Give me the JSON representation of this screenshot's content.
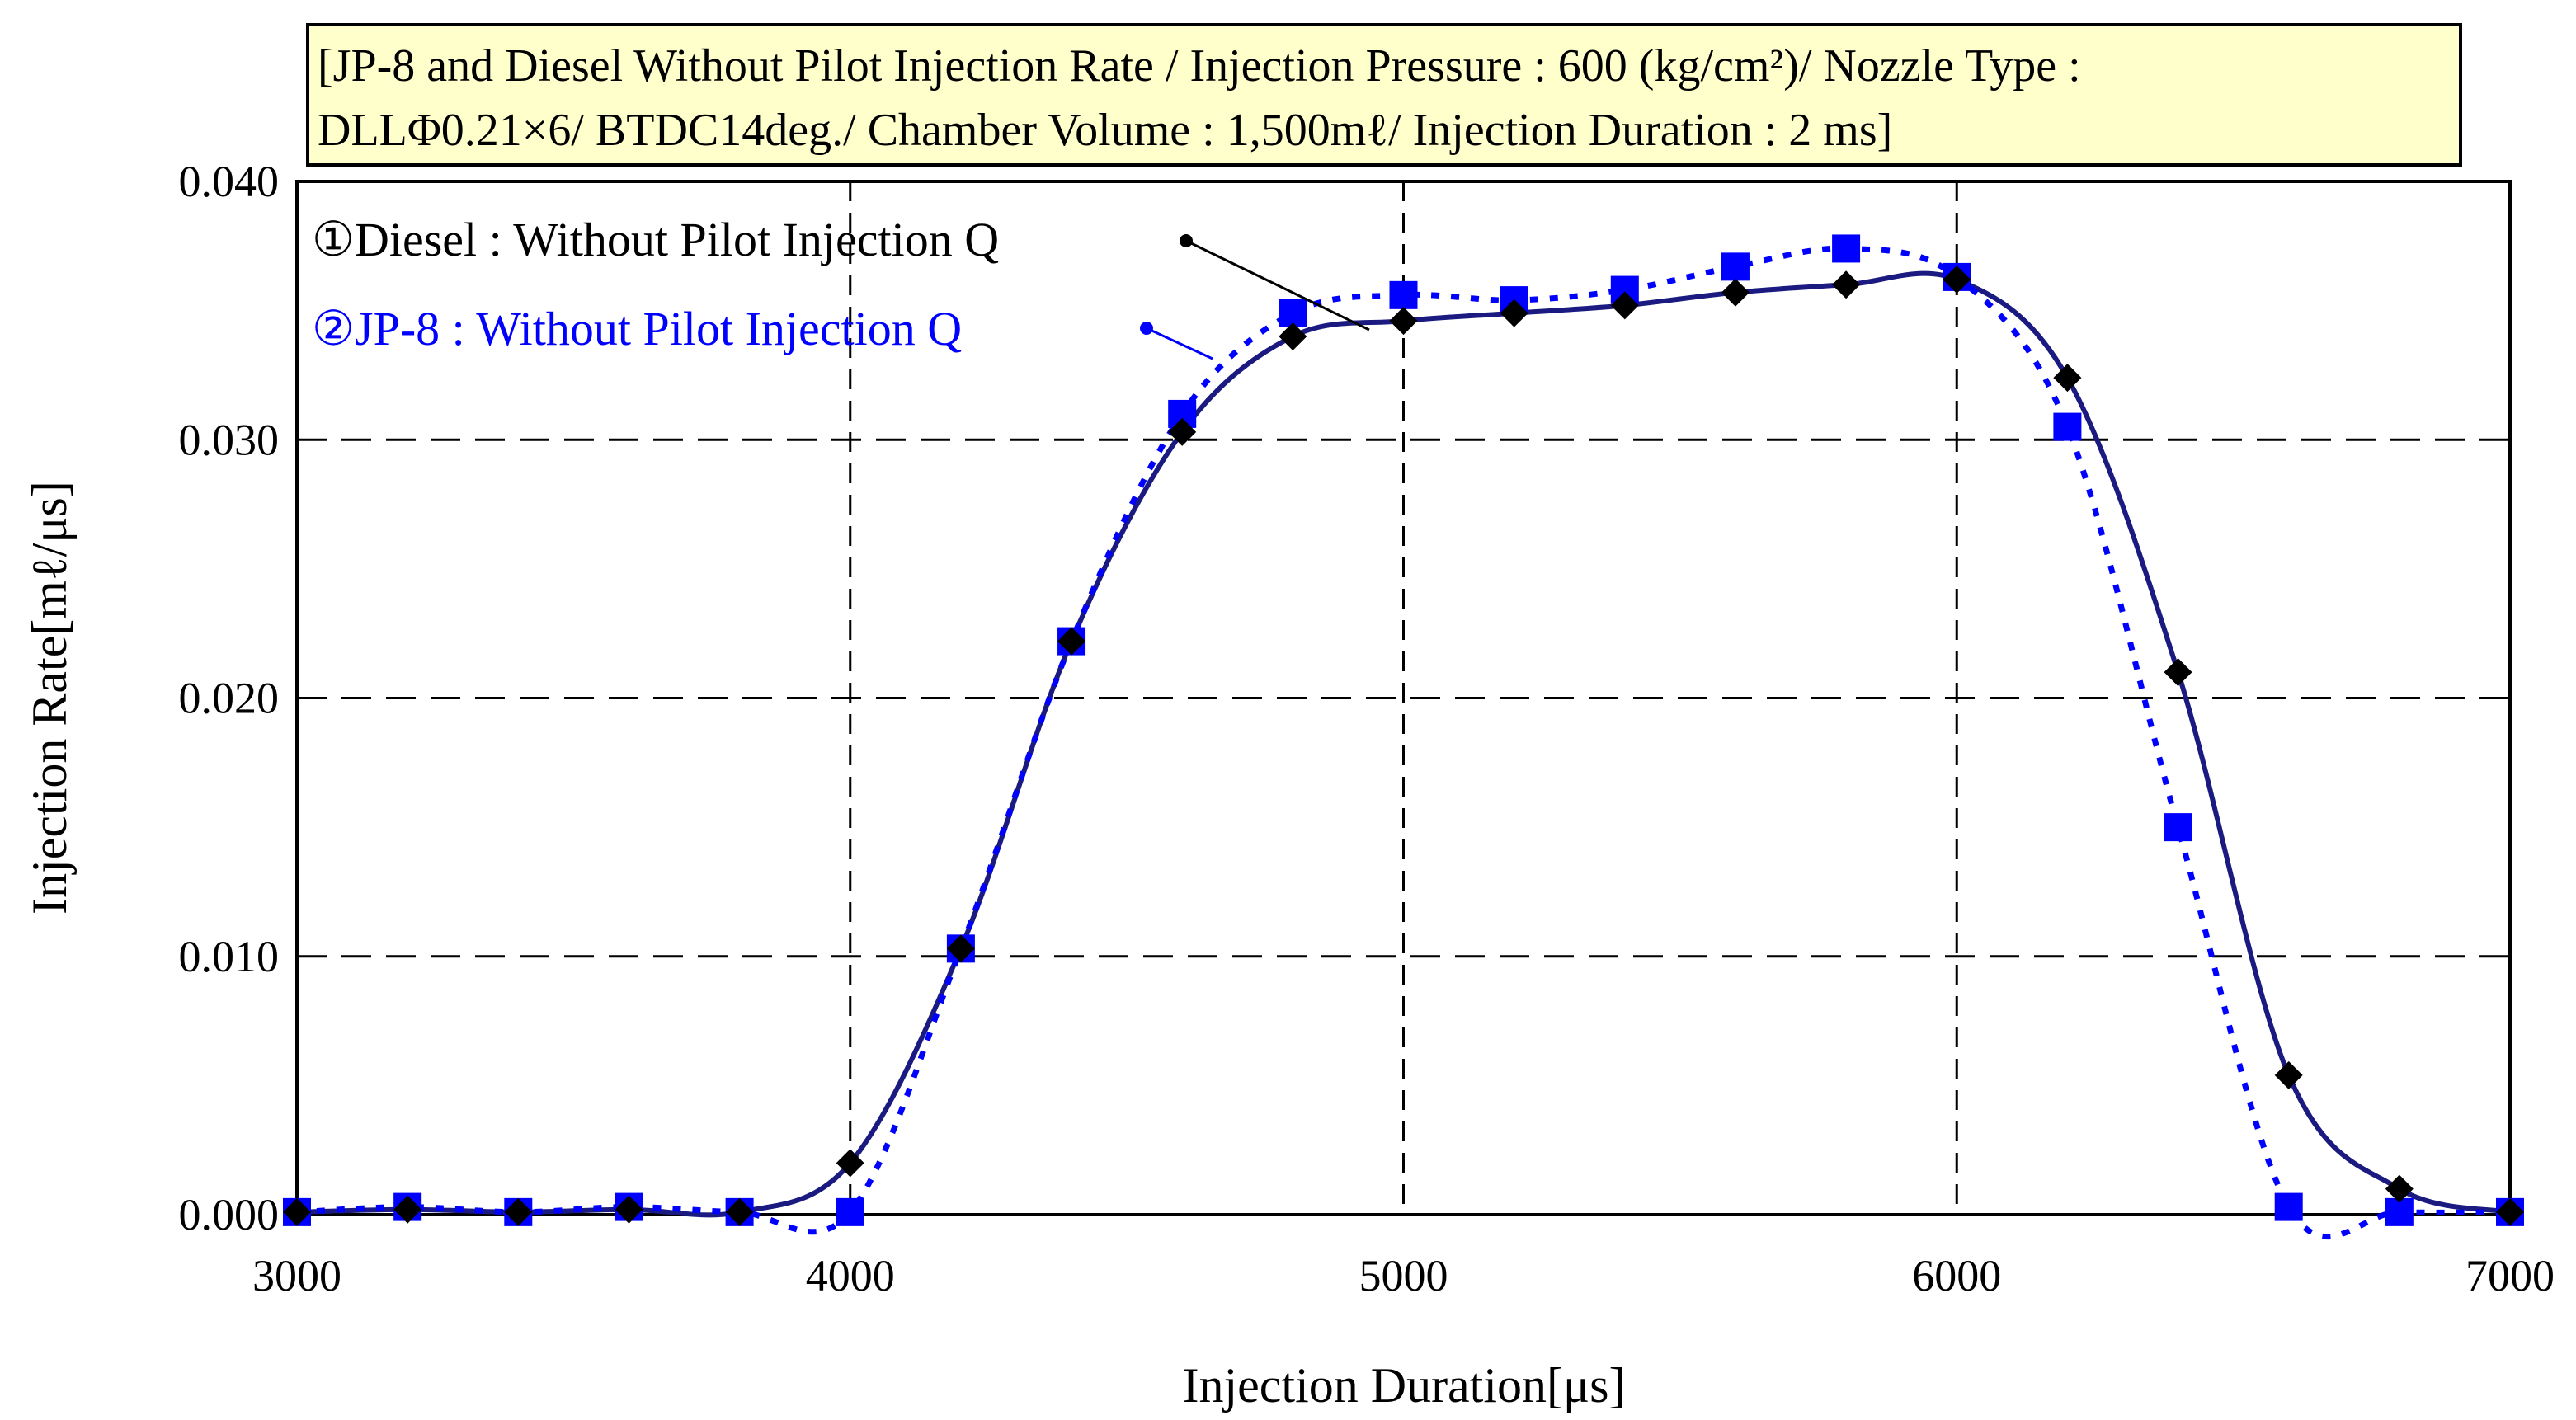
{
  "chart_data": {
    "type": "line",
    "title_lines": [
      "[JP-8 and Diesel Without Pilot Injection Rate / Injection Pressure : 600 (kg/cm²)/ Nozzle Type :",
      "DLLΦ0.21×6/ BTDC14deg./ Chamber Volume : 1,500mℓ/ Injection Duration : 2 ms]"
    ],
    "xlabel": "Injection Duration[μs]",
    "ylabel": "Injection Rate[mℓ/μs]",
    "xlim": [
      3000,
      7000
    ],
    "ylim": [
      0,
      0.04
    ],
    "xticks": [
      3000,
      4000,
      5000,
      6000,
      7000
    ],
    "xtick_labels": [
      "3000",
      "4000",
      "5000",
      "6000",
      "7000"
    ],
    "yticks": [
      0,
      0.01,
      0.02,
      0.03,
      0.04
    ],
    "ytick_labels": [
      "0.000",
      "0.010",
      "0.020",
      "0.030",
      "0.040"
    ],
    "grid": true,
    "series": [
      {
        "name": "①Diesel : Without Pilot Injection Q",
        "color": "#1a1a80",
        "marker": "diamond",
        "marker_color": "#000000",
        "line_style": "solid",
        "x": [
          3000,
          3200,
          3400,
          3600,
          3800,
          4000,
          4200,
          4400,
          4600,
          4800,
          5000,
          5200,
          5400,
          5600,
          5800,
          6000,
          6200,
          6400,
          6600,
          6800,
          7000
        ],
        "values": [
          0.0001,
          0.0002,
          0.0001,
          0.0002,
          0.0001,
          0.002,
          0.0103,
          0.0222,
          0.0303,
          0.034,
          0.0346,
          0.0349,
          0.0352,
          0.0357,
          0.036,
          0.0362,
          0.0324,
          0.021,
          0.0054,
          0.001,
          0.0001
        ]
      },
      {
        "name": "②JP-8 : Without Pilot Injection Q",
        "color": "#0000ff",
        "marker": "square",
        "marker_color": "#0000ff",
        "line_style": "dotted",
        "x": [
          3000,
          3200,
          3400,
          3600,
          3800,
          4000,
          4200,
          4400,
          4600,
          4800,
          5000,
          5200,
          5400,
          5600,
          5800,
          6000,
          6200,
          6400,
          6600,
          6800,
          7000
        ],
        "values": [
          0.0001,
          0.0003,
          0.0001,
          0.0003,
          0.0001,
          0.0001,
          0.0103,
          0.0222,
          0.031,
          0.0349,
          0.0356,
          0.0354,
          0.0358,
          0.0367,
          0.0374,
          0.0363,
          0.0305,
          0.015,
          0.0003,
          0.0001,
          0.0001
        ]
      }
    ]
  }
}
